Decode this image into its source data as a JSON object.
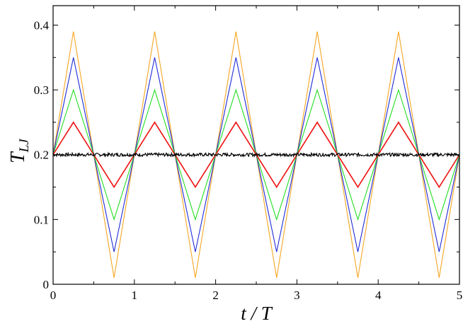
{
  "chart_data": {
    "type": "line",
    "xlabel": "t / T",
    "ylabel_main": "T",
    "ylabel_sub": "LJ",
    "xlim": [
      0,
      5
    ],
    "ylim": [
      0,
      0.43
    ],
    "x_ticks": [
      0,
      1,
      2,
      3,
      4,
      5
    ],
    "x_tick_labels": [
      "0",
      "1",
      "2",
      "3",
      "4",
      "5"
    ],
    "y_ticks": [
      0,
      0.1,
      0.2,
      0.3,
      0.4
    ],
    "y_tick_labels": [
      "0",
      "0.1",
      "0.2",
      "0.3",
      "0.4"
    ],
    "grid": false,
    "legend": "none",
    "series": [
      {
        "color": "#f5a623",
        "x": [
          0,
          0.25,
          0.75,
          1.25,
          1.75,
          2.25,
          2.75,
          3.25,
          3.75,
          4.25,
          4.75,
          5
        ],
        "y": [
          0.2,
          0.39,
          0.01,
          0.39,
          0.01,
          0.39,
          0.01,
          0.39,
          0.01,
          0.39,
          0.01,
          0.2
        ]
      },
      {
        "color": "#1f2ad6",
        "x": [
          0,
          0.25,
          0.75,
          1.25,
          1.75,
          2.25,
          2.75,
          3.25,
          3.75,
          4.25,
          4.75,
          5
        ],
        "y": [
          0.2,
          0.35,
          0.05,
          0.35,
          0.05,
          0.35,
          0.05,
          0.35,
          0.05,
          0.35,
          0.05,
          0.2
        ]
      },
      {
        "color": "#22dd22",
        "x": [
          0,
          0.25,
          0.75,
          1.25,
          1.75,
          2.25,
          2.75,
          3.25,
          3.75,
          4.25,
          4.75,
          5
        ],
        "y": [
          0.2,
          0.3,
          0.1,
          0.3,
          0.1,
          0.3,
          0.1,
          0.3,
          0.1,
          0.3,
          0.1,
          0.2
        ]
      },
      {
        "color": "#ee1111",
        "x": [
          0,
          0.25,
          0.75,
          1.25,
          1.75,
          2.25,
          2.75,
          3.25,
          3.75,
          4.25,
          4.75,
          5
        ],
        "y": [
          0.2,
          0.25,
          0.15,
          0.25,
          0.15,
          0.25,
          0.15,
          0.25,
          0.15,
          0.25,
          0.15,
          0.2
        ]
      },
      {
        "color": "#000000",
        "x": [
          0,
          5
        ],
        "y": [
          0.2,
          0.2
        ],
        "noise": 0.0025
      }
    ]
  }
}
